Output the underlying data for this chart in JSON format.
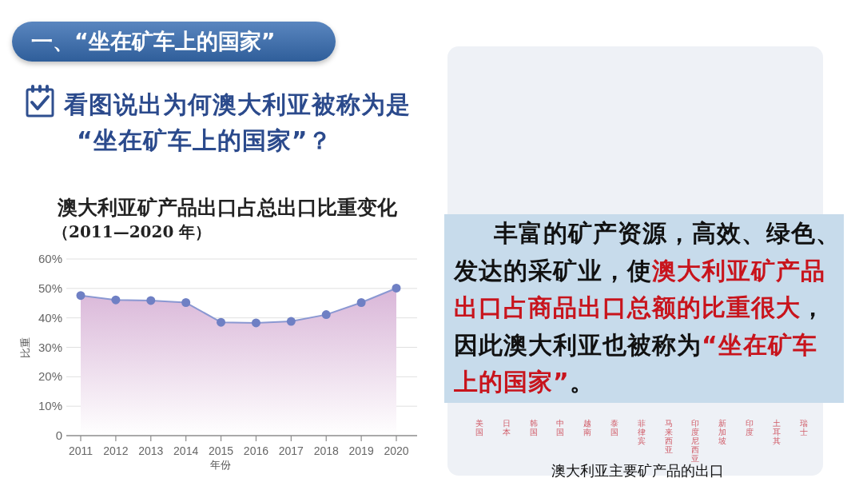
{
  "chart_data": {
    "type": "area",
    "title": "澳大利亚矿产品出口占总出口比重变化",
    "subtitle": "（2011—2020 年）",
    "xlabel": "年份",
    "ylabel": "比重",
    "categories": [
      "2011",
      "2012",
      "2013",
      "2014",
      "2015",
      "2016",
      "2017",
      "2018",
      "2019",
      "2020"
    ],
    "series": [
      {
        "color": "#8a98d2",
        "values": [
          47.6,
          46.1,
          45.9,
          45.2,
          38.5,
          38.3,
          38.8,
          41.1,
          45.2,
          50.1
        ]
      }
    ],
    "ylim": [
      0,
      60
    ],
    "yticks": [
      0,
      {
        "value": 10,
        "label": "10%"
      },
      {
        "value": 20,
        "label": "20%"
      },
      {
        "value": 30,
        "label": "30%"
      },
      {
        "value": 40,
        "label": "40%"
      },
      {
        "value": 50,
        "label": "50%"
      },
      {
        "value": 60,
        "label": "60%"
      }
    ],
    "grid": "y",
    "marker": "circle",
    "line_style": "solid",
    "annotations": [
      "一、“坐在矿车上的国家”",
      "看图说出为何澳大利亚被称为是“坐在矿车上的国家”？",
      "丰富的矿产资源，高效、绿色、",
      "发达的采矿业，使",
      "澳大利亚矿产品",
      "出口占商品出口总额的比重很大",
      "，",
      "因此澳大利亚也被称为",
      "“坐在矿车",
      "上的国家”",
      "。",
      "澳大利亚主要矿产品的出口",
      "美国",
      "日本",
      "韩国",
      "中国",
      "越南",
      "泰国",
      "菲律宾",
      "马来西亚",
      "印度尼西亚",
      "新加坡",
      "印度",
      "土耳其",
      "瑞士"
    ]
  }
}
